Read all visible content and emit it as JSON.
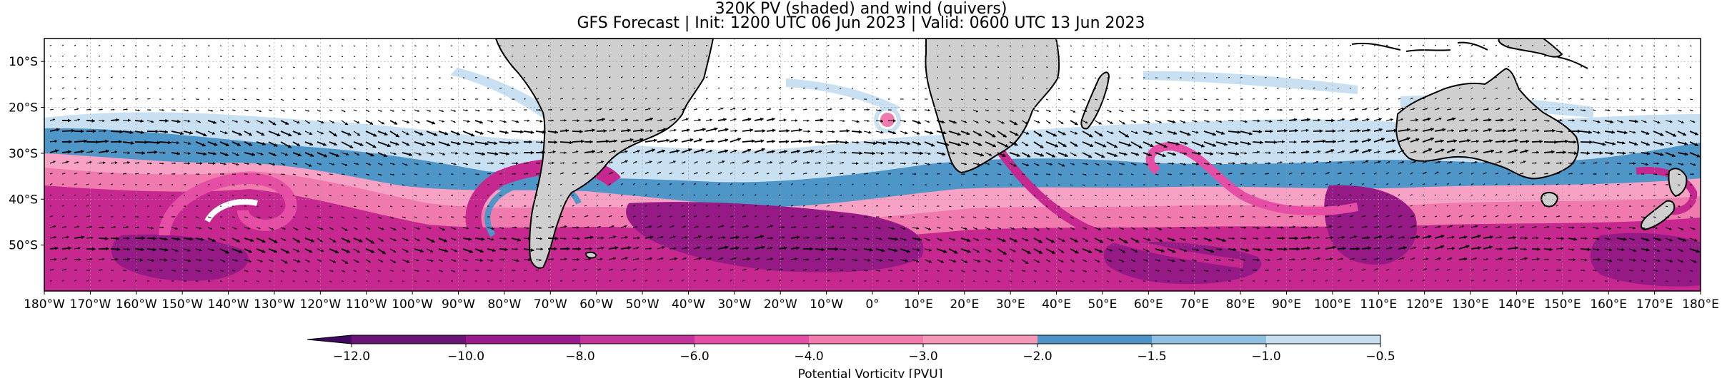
{
  "title_line1": "320K PV (shaded) and wind (quivers)",
  "title_line2": "GFS Forecast | Init: 1200 UTC 06 Jun 2023 | Valid: 0600 UTC 13 Jun 2023",
  "map": {
    "projection": "PlateCarree",
    "lon_range": [
      -180,
      180
    ],
    "lat_range": [
      -60,
      -5
    ],
    "land_color": "#cfcfcf",
    "coastline_color": "#000000",
    "gridlines": true,
    "lon_ticks": [
      "180°W",
      "170°W",
      "160°W",
      "150°W",
      "140°W",
      "130°W",
      "120°W",
      "110°W",
      "100°W",
      "90°W",
      "80°W",
      "70°W",
      "60°W",
      "50°W",
      "40°W",
      "30°W",
      "20°W",
      "10°W",
      "0°",
      "10°E",
      "20°E",
      "30°E",
      "40°E",
      "50°E",
      "60°E",
      "70°E",
      "80°E",
      "90°E",
      "100°E",
      "110°E",
      "120°E",
      "130°E",
      "140°E",
      "150°E",
      "160°E",
      "170°E",
      "180°E"
    ],
    "lat_ticks": [
      "10°S",
      "20°S",
      "30°S",
      "40°S",
      "50°S"
    ],
    "lat_tick_values": [
      -10,
      -20,
      -30,
      -40,
      -50
    ]
  },
  "colorbar": {
    "label": "Potential Vorticity [PVU]",
    "extend": "min",
    "tick_labels": [
      "−12.0",
      "−10.0",
      "−8.0",
      "−6.0",
      "−4.0",
      "−3.0",
      "−2.0",
      "−1.5",
      "−1.0",
      "−0.5"
    ],
    "colors": [
      "#3f0a5e",
      "#6c1378",
      "#991a8f",
      "#c23399",
      "#e64ea6",
      "#f27aad",
      "#f598b7",
      "#4c93c7",
      "#8fbfe0",
      "#c6dff0"
    ],
    "arrow_color": "#3f0a5e"
  },
  "legend_bands_color_note": "",
  "regions": {
    "band_strong": "#c7288f",
    "band_dark": "#961a85",
    "band_pink": "#f07aae",
    "band_light_pink": "#f7a1c4",
    "band_blue": "#4f96c8",
    "band_light_blue": "#c8e0f1"
  }
}
